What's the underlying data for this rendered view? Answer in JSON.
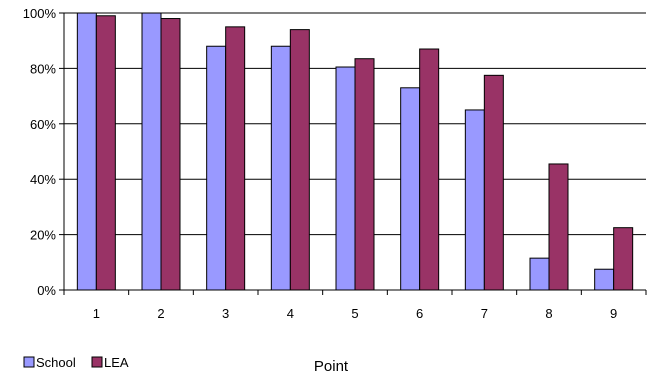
{
  "chart_data": {
    "type": "bar",
    "categories": [
      "1",
      "2",
      "3",
      "4",
      "5",
      "6",
      "7",
      "8",
      "9"
    ],
    "series": [
      {
        "name": "School",
        "values": [
          100,
          100,
          88,
          88,
          80.5,
          73,
          65,
          11.5,
          7.5
        ],
        "color": "#9999ff"
      },
      {
        "name": "LEA",
        "values": [
          99,
          98,
          95,
          94,
          83.5,
          87,
          77.5,
          45.5,
          22.5
        ],
        "color": "#993366"
      }
    ],
    "xlabel": "Point",
    "ylabel": "",
    "ylim": [
      0,
      100
    ],
    "yticks": [
      "0%",
      "20%",
      "40%",
      "60%",
      "80%",
      "100%"
    ],
    "grid": true,
    "legend_position": "bottom-left"
  }
}
